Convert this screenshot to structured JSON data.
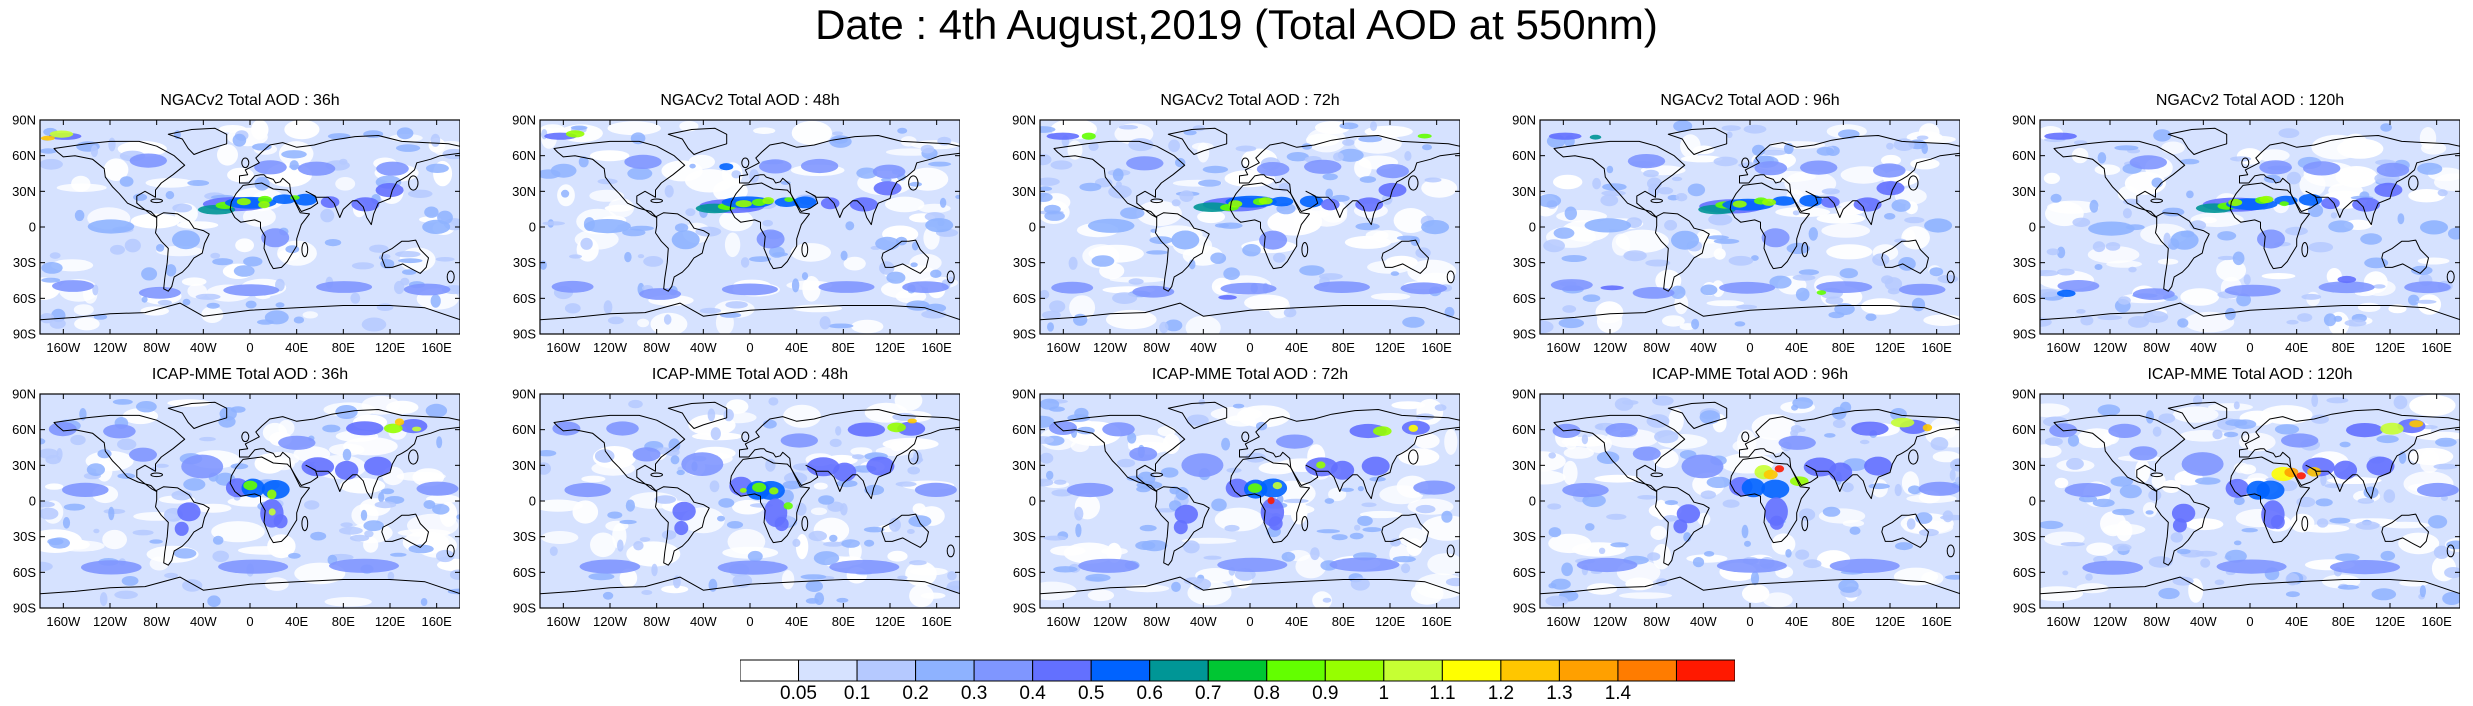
{
  "title": "Date : 4th August,2019 (Total AOD at 550nm)",
  "panels": [
    {
      "title": "NGACv2 Total AOD : 36h",
      "model": "NGACv2",
      "lead": "36h"
    },
    {
      "title": "NGACv2 Total AOD : 48h",
      "model": "NGACv2",
      "lead": "48h"
    },
    {
      "title": "NGACv2 Total AOD : 72h",
      "model": "NGACv2",
      "lead": "72h"
    },
    {
      "title": "NGACv2 Total AOD : 96h",
      "model": "NGACv2",
      "lead": "96h"
    },
    {
      "title": "NGACv2 Total AOD : 120h",
      "model": "NGACv2",
      "lead": "120h"
    },
    {
      "title": "ICAP-MME Total AOD : 36h",
      "model": "ICAP-MME",
      "lead": "36h"
    },
    {
      "title": "ICAP-MME Total AOD : 48h",
      "model": "ICAP-MME",
      "lead": "48h"
    },
    {
      "title": "ICAP-MME Total AOD : 72h",
      "model": "ICAP-MME",
      "lead": "72h"
    },
    {
      "title": "ICAP-MME Total AOD : 96h",
      "model": "ICAP-MME",
      "lead": "96h"
    },
    {
      "title": "ICAP-MME Total AOD : 120h",
      "model": "ICAP-MME",
      "lead": "120h"
    }
  ],
  "lat_ticks": [
    "90N",
    "60N",
    "30N",
    "0",
    "30S",
    "60S",
    "90S"
  ],
  "lon_ticks": [
    "160W",
    "120W",
    "80W",
    "40W",
    "0",
    "40E",
    "80E",
    "120E",
    "160E"
  ],
  "colorbar": {
    "colors": [
      "#ffffff",
      "#d6e2ff",
      "#b5c9ff",
      "#8eb2ff",
      "#7f96ff",
      "#6370ff",
      "#0063ff",
      "#009696",
      "#00c633",
      "#63ff00",
      "#96ff00",
      "#c6ff33",
      "#ffff00",
      "#ffc600",
      "#ffa000",
      "#ff7c00",
      "#ff1900"
    ],
    "labels": [
      "0.05",
      "0.1",
      "0.2",
      "0.3",
      "0.4",
      "0.5",
      "0.6",
      "0.7",
      "0.8",
      "0.9",
      "1",
      "1.1",
      "1.2",
      "1.3",
      "1.4"
    ]
  }
}
